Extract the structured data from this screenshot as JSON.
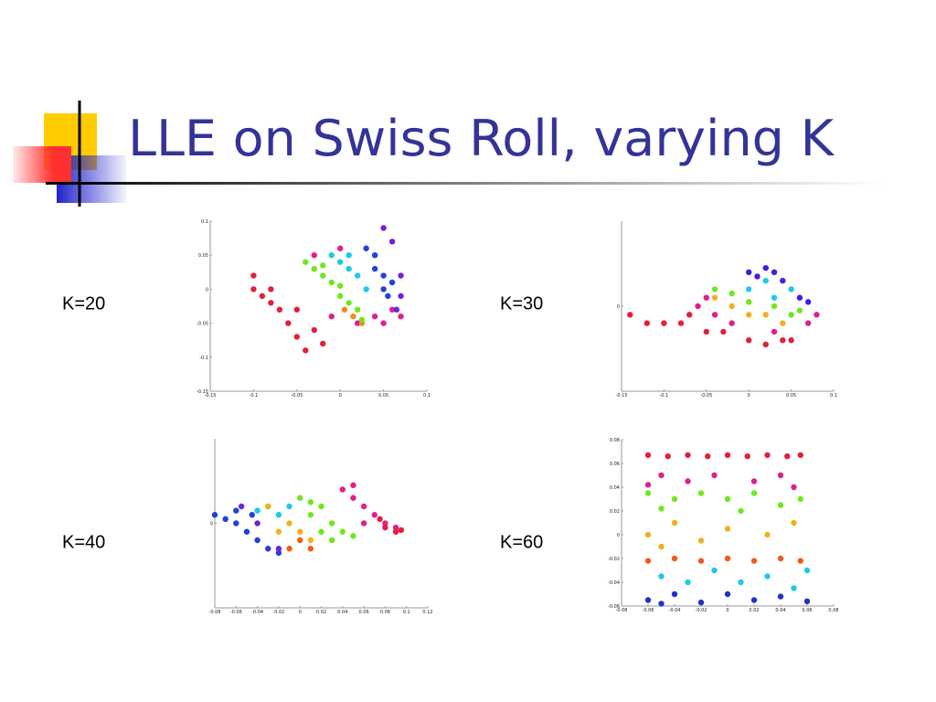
{
  "slide_title": "LLE on Swiss Roll, varying K",
  "chart_data": [
    {
      "type": "scatter",
      "title": "K=20",
      "xlim": [
        -0.15,
        0.1
      ],
      "xticks": [
        -0.15,
        -0.1,
        -0.05,
        0,
        0.05,
        0.1
      ],
      "ylim": [
        -0.15,
        0.1
      ],
      "yticks": [
        -0.15,
        -0.1,
        -0.05,
        0,
        0.05,
        0.1
      ],
      "series": [
        {
          "color": "#e0203c",
          "x": [
            -0.1,
            -0.09,
            -0.08,
            -0.07,
            -0.06,
            -0.05,
            -0.04,
            -0.03,
            -0.02,
            -0.08,
            -0.05,
            -0.1
          ],
          "values": [
            0.02,
            -0.01,
            0.0,
            -0.03,
            -0.05,
            -0.07,
            -0.09,
            -0.06,
            -0.08,
            -0.02,
            -0.03,
            0.0
          ]
        },
        {
          "color": "#e0208c",
          "x": [
            -0.03,
            0.0,
            0.02,
            0.04,
            0.06,
            -0.01,
            0.05,
            0.07
          ],
          "values": [
            0.05,
            0.06,
            -0.05,
            -0.04,
            -0.03,
            -0.04,
            -0.05,
            -0.04
          ]
        },
        {
          "color": "#f08a1c",
          "x": [
            0.015,
            0.025,
            0.005
          ],
          "values": [
            -0.04,
            -0.05,
            -0.03
          ]
        },
        {
          "color": "#6ee81e",
          "x": [
            -0.04,
            -0.03,
            -0.02,
            -0.01,
            0.0,
            0.01,
            0.02,
            0.025,
            -0.02,
            0.0
          ],
          "values": [
            0.04,
            0.03,
            0.02,
            0.01,
            -0.01,
            -0.02,
            -0.03,
            -0.045,
            0.035,
            0.005
          ]
        },
        {
          "color": "#1ec8e8",
          "x": [
            -0.01,
            0.0,
            0.01,
            0.02,
            0.01,
            0.03
          ],
          "values": [
            0.05,
            0.04,
            0.03,
            0.02,
            0.05,
            0.0
          ]
        },
        {
          "color": "#2040e0",
          "x": [
            0.03,
            0.04,
            0.05,
            0.05,
            0.04,
            0.06,
            0.055
          ],
          "values": [
            0.06,
            0.05,
            0.02,
            0.0,
            0.03,
            0.01,
            -0.01
          ]
        },
        {
          "color": "#7020e0",
          "x": [
            0.05,
            0.06,
            0.07,
            0.065,
            0.07
          ],
          "values": [
            0.09,
            0.07,
            -0.01,
            -0.03,
            0.02
          ]
        }
      ]
    },
    {
      "type": "scatter",
      "title": "K=30",
      "xlim": [
        -0.15,
        0.1
      ],
      "xticks": [
        -0.15,
        -0.1,
        -0.05,
        0,
        0.05,
        0.1
      ],
      "ylim": [
        -0.1,
        0.1
      ],
      "yticks": [
        0
      ],
      "series": [
        {
          "color": "#e0203c",
          "x": [
            -0.14,
            -0.12,
            -0.1,
            -0.08,
            -0.07,
            -0.05,
            -0.03,
            0.0,
            0.02,
            0.04,
            0.05
          ],
          "values": [
            -0.01,
            -0.02,
            -0.02,
            -0.02,
            -0.01,
            -0.03,
            -0.03,
            -0.04,
            -0.045,
            -0.04,
            -0.04
          ]
        },
        {
          "color": "#e0208c",
          "x": [
            -0.06,
            -0.04,
            -0.02,
            0.03,
            0.07,
            0.08,
            -0.05
          ],
          "values": [
            0.0,
            -0.01,
            -0.02,
            -0.03,
            -0.02,
            -0.01,
            0.01
          ]
        },
        {
          "color": "#f0b01c",
          "x": [
            -0.04,
            -0.02,
            0.0,
            0.02,
            0.04
          ],
          "values": [
            0.01,
            0.0,
            -0.01,
            -0.01,
            -0.02
          ]
        },
        {
          "color": "#6ee81e",
          "x": [
            -0.04,
            -0.02,
            0.0,
            0.03,
            0.05,
            0.06
          ],
          "values": [
            0.02,
            0.015,
            0.005,
            0.0,
            -0.01,
            -0.005
          ]
        },
        {
          "color": "#1ec8e8",
          "x": [
            0.0,
            0.02,
            0.03,
            0.05
          ],
          "values": [
            0.02,
            0.03,
            0.01,
            0.02
          ]
        },
        {
          "color": "#4020e0",
          "x": [
            0.0,
            0.01,
            0.03,
            0.04,
            0.06,
            0.07,
            0.02
          ],
          "values": [
            0.04,
            0.035,
            0.04,
            0.03,
            0.01,
            0.005,
            0.045
          ]
        }
      ]
    },
    {
      "type": "scatter",
      "title": "K=40",
      "xlim": [
        -0.08,
        0.12
      ],
      "xticks": [
        -0.08,
        -0.06,
        -0.04,
        -0.02,
        0,
        0.02,
        0.04,
        0.06,
        0.08,
        0.1,
        0.12
      ],
      "ylim": [
        -0.1,
        0.1
      ],
      "yticks": [
        0
      ],
      "series": [
        {
          "color": "#2040e0",
          "x": [
            -0.08,
            -0.07,
            -0.06,
            -0.05,
            -0.04,
            -0.03,
            -0.02,
            -0.06,
            -0.045
          ],
          "values": [
            0.01,
            0.005,
            0.0,
            -0.01,
            -0.02,
            -0.03,
            -0.035,
            0.015,
            0.01
          ]
        },
        {
          "color": "#7020e0",
          "x": [
            -0.055,
            -0.04,
            -0.02
          ],
          "values": [
            0.02,
            0.0,
            -0.03
          ]
        },
        {
          "color": "#1ec8e8",
          "x": [
            -0.04,
            -0.03,
            -0.02,
            -0.01
          ],
          "values": [
            0.015,
            0.02,
            0.01,
            0.02
          ]
        },
        {
          "color": "#f0b01c",
          "x": [
            -0.03,
            -0.01,
            0.0,
            0.01,
            -0.02
          ],
          "values": [
            0.02,
            0.0,
            -0.01,
            -0.02,
            -0.01
          ]
        },
        {
          "color": "#f05a1c",
          "x": [
            0.0,
            -0.01,
            0.01
          ],
          "values": [
            -0.02,
            -0.03,
            -0.03
          ]
        },
        {
          "color": "#6ee81e",
          "x": [
            0.0,
            0.01,
            0.02,
            0.03,
            0.04,
            0.05,
            0.02,
            0.03,
            0.01
          ],
          "values": [
            0.03,
            0.025,
            0.02,
            0.0,
            -0.01,
            -0.015,
            -0.01,
            -0.02,
            0.01
          ]
        },
        {
          "color": "#e0208c",
          "x": [
            0.04,
            0.05,
            0.06,
            0.07,
            0.08,
            0.09,
            0.06,
            0.05
          ],
          "values": [
            0.04,
            0.03,
            0.02,
            0.01,
            0.0,
            -0.005,
            0.0,
            0.045
          ]
        },
        {
          "color": "#e0203c",
          "x": [
            0.08,
            0.09,
            0.095,
            0.075
          ],
          "values": [
            -0.005,
            -0.01,
            -0.008,
            0.005
          ]
        }
      ]
    },
    {
      "type": "scatter",
      "title": "K=60",
      "xlim": [
        -0.08,
        0.08
      ],
      "xticks": [
        -0.08,
        -0.06,
        -0.04,
        -0.02,
        0,
        0.02,
        0.04,
        0.06,
        0.08
      ],
      "ylim": [
        -0.06,
        0.08
      ],
      "yticks": [
        -0.06,
        -0.04,
        -0.02,
        0,
        0.02,
        0.04,
        0.06,
        0.08
      ],
      "series": [
        {
          "color": "#e0203c",
          "x": [
            -0.06,
            -0.045,
            -0.03,
            -0.015,
            0,
            0.015,
            0.03,
            0.045,
            0.055
          ],
          "values": [
            0.067,
            0.066,
            0.067,
            0.066,
            0.067,
            0.066,
            0.067,
            0.066,
            0.067
          ]
        },
        {
          "color": "#e0208c",
          "x": [
            -0.05,
            -0.03,
            -0.01,
            0.02,
            0.04,
            0.05,
            -0.06
          ],
          "values": [
            0.05,
            0.045,
            0.05,
            0.045,
            0.05,
            0.04,
            0.042
          ]
        },
        {
          "color": "#6ee81e",
          "x": [
            -0.06,
            -0.04,
            -0.02,
            0.0,
            0.02,
            0.04,
            0.055,
            -0.05,
            0.01
          ],
          "values": [
            0.035,
            0.03,
            0.035,
            0.03,
            0.035,
            0.025,
            0.03,
            0.022,
            0.02
          ]
        },
        {
          "color": "#f0b01c",
          "x": [
            -0.06,
            -0.04,
            -0.02,
            0.0,
            0.03,
            0.05,
            -0.05
          ],
          "values": [
            0.0,
            0.01,
            -0.005,
            0.005,
            0.0,
            0.01,
            -0.01
          ]
        },
        {
          "color": "#f05a1c",
          "x": [
            -0.06,
            -0.04,
            -0.02,
            0.0,
            0.02,
            0.04,
            0.055
          ],
          "values": [
            -0.022,
            -0.02,
            -0.022,
            -0.02,
            -0.022,
            -0.02,
            -0.022
          ]
        },
        {
          "color": "#1ec8e8",
          "x": [
            -0.05,
            -0.03,
            -0.01,
            0.01,
            0.03,
            0.05,
            0.06
          ],
          "values": [
            -0.035,
            -0.04,
            -0.03,
            -0.04,
            -0.035,
            -0.045,
            -0.03
          ]
        },
        {
          "color": "#2030d0",
          "x": [
            -0.06,
            -0.04,
            -0.02,
            0.0,
            0.02,
            0.04,
            0.06,
            -0.05
          ],
          "values": [
            -0.055,
            -0.05,
            -0.057,
            -0.05,
            -0.055,
            -0.052,
            -0.056,
            -0.058
          ]
        }
      ]
    }
  ]
}
